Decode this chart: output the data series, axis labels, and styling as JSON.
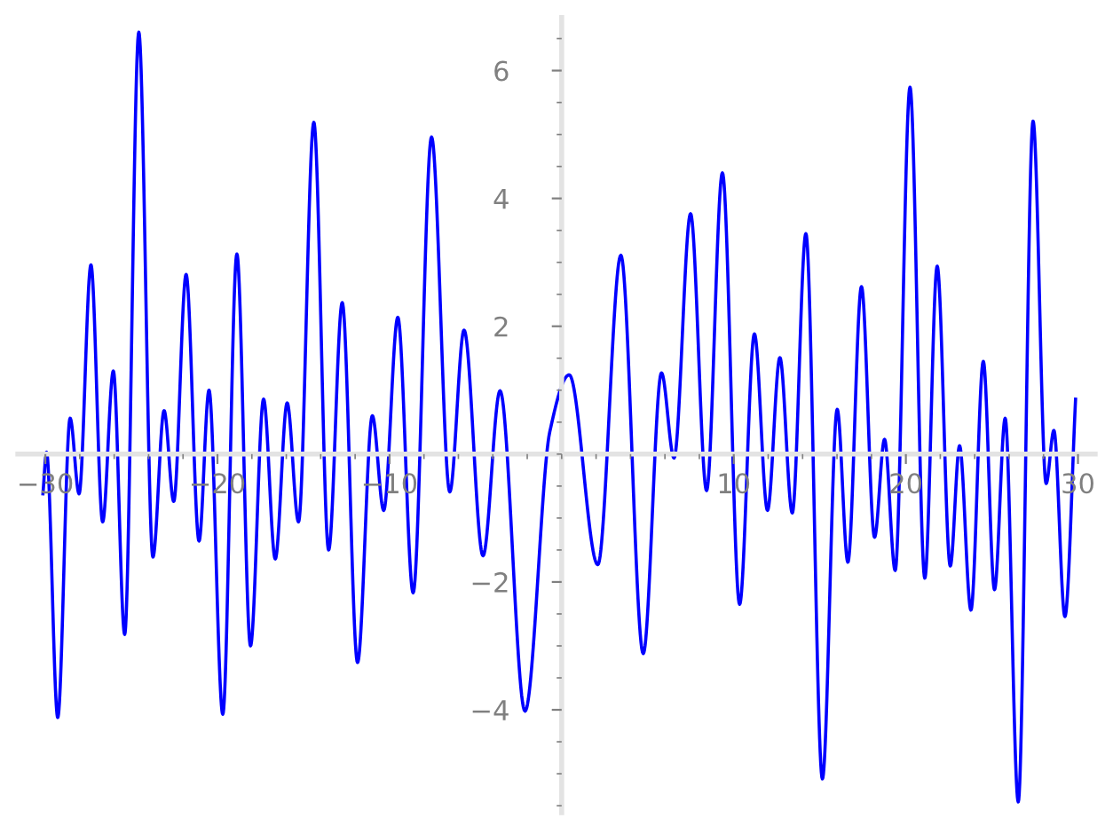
{
  "chart_data": {
    "type": "line",
    "x": [
      -30.14,
      -29.93,
      -29.28,
      -28.56,
      -28.04,
      -27.35,
      -26.67,
      -26.05,
      -25.39,
      -24.57,
      -23.75,
      -23.1,
      -22.54,
      -21.82,
      -21.07,
      -20.49,
      -19.69,
      -18.87,
      -18.08,
      -17.32,
      -16.64,
      -15.95,
      -15.29,
      -14.4,
      -13.54,
      -12.75,
      -11.86,
      -11.0,
      -10.34,
      -9.52,
      -8.63,
      -7.56,
      -6.5,
      -5.67,
      -4.57,
      -3.58,
      -2.13,
      -0.69,
      0.44,
      2.1,
      3.44,
      4.74,
      5.8,
      6.53,
      7.49,
      8.42,
      9.34,
      10.34,
      11.2,
      11.96,
      12.68,
      13.4,
      14.19,
      15.15,
      16.01,
      16.63,
      17.42,
      18.18,
      18.76,
      19.38,
      20.24,
      21.1,
      21.82,
      22.58,
      23.12,
      23.78,
      24.5,
      25.15,
      25.77,
      26.53,
      27.39,
      28.15,
      28.6,
      29.24,
      29.86
    ],
    "series": [
      {
        "color": "#0000ff",
        "values": [
          -0.62,
          0.03,
          -4.12,
          0.56,
          -0.62,
          2.96,
          -1.06,
          1.3,
          -2.82,
          6.6,
          -1.61,
          0.68,
          -0.74,
          2.81,
          -1.36,
          1.0,
          -4.07,
          3.13,
          -3.0,
          0.86,
          -1.64,
          0.8,
          -1.06,
          5.19,
          -1.5,
          2.37,
          -3.26,
          0.6,
          -0.88,
          2.14,
          -2.17,
          4.96,
          -0.59,
          1.94,
          -1.59,
          0.99,
          -4.02,
          0.35,
          1.24,
          -1.73,
          3.11,
          -3.12,
          1.27,
          -0.06,
          3.76,
          -0.57,
          4.4,
          -2.35,
          1.88,
          -0.88,
          1.51,
          -0.92,
          3.45,
          -5.08,
          0.7,
          -1.69,
          2.62,
          -1.3,
          0.23,
          -1.82,
          5.74,
          -1.94,
          2.94,
          -1.75,
          0.13,
          -2.44,
          1.45,
          -2.12,
          0.56,
          -5.44,
          5.21,
          -0.46,
          0.37,
          -2.54,
          0.86
        ]
      }
    ],
    "xlim": [
      -31.6,
      31.0
    ],
    "ylim": [
      -5.61,
      6.83
    ],
    "xticks": [
      -30,
      -20,
      -10,
      10,
      20,
      30
    ],
    "yticks": [
      -4,
      -2,
      2,
      4,
      6
    ],
    "grid": false,
    "legend": false,
    "marker": "none",
    "line_style": "solid"
  }
}
